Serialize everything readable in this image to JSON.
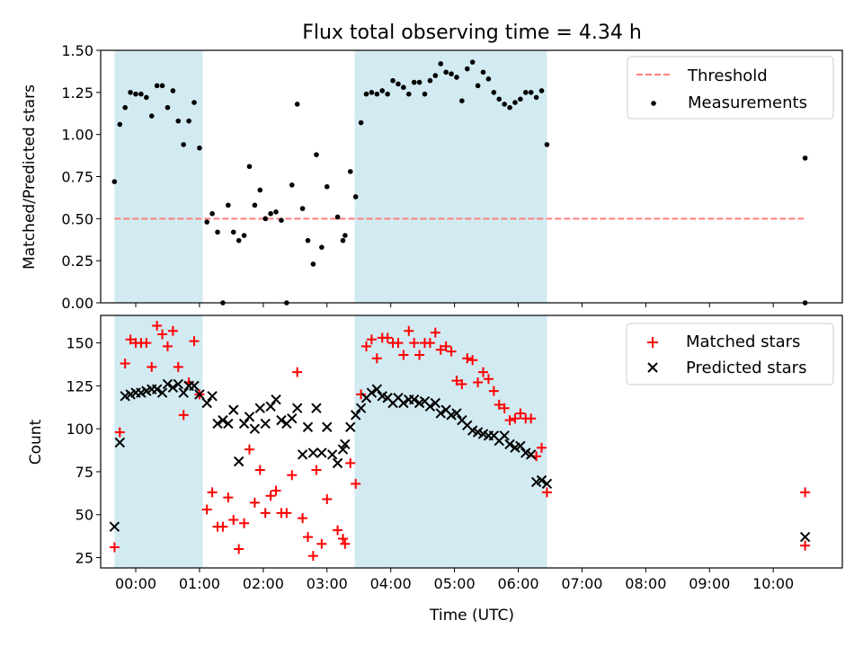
{
  "figure_title": "Flux total observing time = 4.34 h",
  "chart_data": [
    {
      "type": "scatter",
      "ylabel": "Matched/Predicted stars",
      "xlabel": "",
      "xlim": [
        "-00:33",
        "11:05"
      ],
      "ylim": [
        0,
        1.5
      ],
      "yticks": [
        "0.00",
        "0.25",
        "0.50",
        "0.75",
        "1.00",
        "1.25",
        "1.50"
      ],
      "legend": {
        "position": "top-right"
      },
      "shaded_intervals": [
        {
          "start": "-00:20",
          "end": "01:03",
          "color": "#add8e6"
        },
        {
          "start": "03:26",
          "end": "06:27",
          "color": "#add8e6"
        }
      ],
      "threshold": {
        "name": "Threshold",
        "value": 0.5,
        "x_start": "-00:20",
        "x_end": "10:30",
        "color": "#ff7f7f",
        "style": "dashed"
      },
      "series": [
        {
          "name": "Measurements",
          "color": "#000000",
          "marker": "dot",
          "points": [
            [
              "-00:20",
              0.72
            ],
            [
              "-00:15",
              1.06
            ],
            [
              "-00:10",
              1.16
            ],
            [
              "-00:05",
              1.25
            ],
            [
              "00:00",
              1.24
            ],
            [
              "00:05",
              1.24
            ],
            [
              "00:10",
              1.22
            ],
            [
              "00:15",
              1.11
            ],
            [
              "00:20",
              1.29
            ],
            [
              "00:25",
              1.29
            ],
            [
              "00:30",
              1.16
            ],
            [
              "00:35",
              1.26
            ],
            [
              "00:40",
              1.08
            ],
            [
              "00:45",
              0.94
            ],
            [
              "00:50",
              1.08
            ],
            [
              "00:55",
              1.19
            ],
            [
              "01:00",
              0.92
            ],
            [
              "01:07",
              0.48
            ],
            [
              "01:12",
              0.53
            ],
            [
              "01:17",
              0.42
            ],
            [
              "01:22",
              0.0
            ],
            [
              "01:27",
              0.58
            ],
            [
              "01:32",
              0.42
            ],
            [
              "01:37",
              0.37
            ],
            [
              "01:42",
              0.4
            ],
            [
              "01:47",
              0.81
            ],
            [
              "01:52",
              0.58
            ],
            [
              "01:57",
              0.67
            ],
            [
              "02:02",
              0.5
            ],
            [
              "02:07",
              0.53
            ],
            [
              "02:12",
              0.54
            ],
            [
              "02:17",
              0.49
            ],
            [
              "02:22",
              0.0
            ],
            [
              "02:27",
              0.7
            ],
            [
              "02:32",
              1.18
            ],
            [
              "02:37",
              0.56
            ],
            [
              "02:42",
              0.37
            ],
            [
              "02:47",
              0.23
            ],
            [
              "02:50",
              0.88
            ],
            [
              "02:55",
              0.33
            ],
            [
              "03:00",
              0.69
            ],
            [
              "03:10",
              0.51
            ],
            [
              "03:15",
              0.37
            ],
            [
              "03:17",
              0.4
            ],
            [
              "03:22",
              0.78
            ],
            [
              "03:27",
              0.63
            ],
            [
              "03:32",
              1.07
            ],
            [
              "03:37",
              1.24
            ],
            [
              "03:42",
              1.25
            ],
            [
              "03:47",
              1.24
            ],
            [
              "03:52",
              1.26
            ],
            [
              "03:57",
              1.24
            ],
            [
              "04:02",
              1.32
            ],
            [
              "04:07",
              1.3
            ],
            [
              "04:12",
              1.28
            ],
            [
              "04:17",
              1.24
            ],
            [
              "04:22",
              1.31
            ],
            [
              "04:27",
              1.31
            ],
            [
              "04:32",
              1.24
            ],
            [
              "04:37",
              1.32
            ],
            [
              "04:42",
              1.35
            ],
            [
              "04:47",
              1.42
            ],
            [
              "04:52",
              1.37
            ],
            [
              "04:57",
              1.36
            ],
            [
              "05:02",
              1.34
            ],
            [
              "05:07",
              1.2
            ],
            [
              "05:12",
              1.39
            ],
            [
              "05:17",
              1.43
            ],
            [
              "05:22",
              1.29
            ],
            [
              "05:27",
              1.37
            ],
            [
              "05:32",
              1.33
            ],
            [
              "05:37",
              1.25
            ],
            [
              "05:42",
              1.21
            ],
            [
              "05:47",
              1.18
            ],
            [
              "05:52",
              1.16
            ],
            [
              "05:57",
              1.19
            ],
            [
              "06:02",
              1.21
            ],
            [
              "06:07",
              1.25
            ],
            [
              "06:12",
              1.25
            ],
            [
              "06:17",
              1.22
            ],
            [
              "06:22",
              1.26
            ],
            [
              "06:27",
              0.94
            ],
            [
              "10:30",
              0.86
            ],
            [
              "10:30",
              0.0
            ]
          ]
        }
      ]
    },
    {
      "type": "scatter",
      "ylabel": "Count",
      "xlabel": "Time (UTC)",
      "xlim": [
        "-00:33",
        "11:05"
      ],
      "ylim": [
        19,
        166
      ],
      "yticks": [
        "25",
        "50",
        "75",
        "100",
        "125",
        "150"
      ],
      "xticks": [
        "00:00",
        "01:00",
        "02:00",
        "03:00",
        "04:00",
        "05:00",
        "06:00",
        "07:00",
        "08:00",
        "09:00",
        "10:00"
      ],
      "legend": {
        "position": "top-right"
      },
      "shaded_intervals": [
        {
          "start": "-00:20",
          "end": "01:03",
          "color": "#add8e6"
        },
        {
          "start": "03:26",
          "end": "06:27",
          "color": "#add8e6"
        }
      ],
      "series": [
        {
          "name": "Matched stars",
          "color": "#ff0000",
          "marker": "plus",
          "points": [
            [
              "-00:20",
              31
            ],
            [
              "-00:15",
              98
            ],
            [
              "-00:10",
              138
            ],
            [
              "-00:05",
              152
            ],
            [
              "00:00",
              150
            ],
            [
              "00:05",
              150
            ],
            [
              "00:10",
              150
            ],
            [
              "00:15",
              136
            ],
            [
              "00:20",
              160
            ],
            [
              "00:25",
              155
            ],
            [
              "00:30",
              148
            ],
            [
              "00:35",
              157
            ],
            [
              "00:40",
              136
            ],
            [
              "00:45",
              108
            ],
            [
              "00:50",
              127
            ],
            [
              "00:55",
              151
            ],
            [
              "01:00",
              120
            ],
            [
              "01:07",
              53
            ],
            [
              "01:12",
              63
            ],
            [
              "01:17",
              43
            ],
            [
              "01:22",
              43
            ],
            [
              "01:27",
              60
            ],
            [
              "01:32",
              47
            ],
            [
              "01:37",
              30
            ],
            [
              "01:42",
              45
            ],
            [
              "01:47",
              88
            ],
            [
              "01:52",
              57
            ],
            [
              "01:57",
              76
            ],
            [
              "02:02",
              51
            ],
            [
              "02:07",
              61
            ],
            [
              "02:12",
              64
            ],
            [
              "02:17",
              51
            ],
            [
              "02:22",
              51
            ],
            [
              "02:27",
              73
            ],
            [
              "02:32",
              133
            ],
            [
              "02:37",
              48
            ],
            [
              "02:42",
              37
            ],
            [
              "02:47",
              26
            ],
            [
              "02:50",
              76
            ],
            [
              "02:55",
              33
            ],
            [
              "03:00",
              59
            ],
            [
              "03:10",
              41
            ],
            [
              "03:15",
              36
            ],
            [
              "03:17",
              33
            ],
            [
              "03:22",
              80
            ],
            [
              "03:27",
              68
            ],
            [
              "03:32",
              120
            ],
            [
              "03:37",
              148
            ],
            [
              "03:42",
              152
            ],
            [
              "03:47",
              141
            ],
            [
              "03:52",
              153
            ],
            [
              "03:57",
              153
            ],
            [
              "04:02",
              150
            ],
            [
              "04:07",
              150
            ],
            [
              "04:12",
              143
            ],
            [
              "04:17",
              157
            ],
            [
              "04:22",
              150
            ],
            [
              "04:27",
              143
            ],
            [
              "04:32",
              150
            ],
            [
              "04:37",
              150
            ],
            [
              "04:42",
              156
            ],
            [
              "04:47",
              146
            ],
            [
              "04:52",
              148
            ],
            [
              "04:57",
              145
            ],
            [
              "05:02",
              128
            ],
            [
              "05:07",
              126
            ],
            [
              "05:12",
              141
            ],
            [
              "05:17",
              140
            ],
            [
              "05:22",
              127
            ],
            [
              "05:27",
              133
            ],
            [
              "05:32",
              129
            ],
            [
              "05:37",
              122
            ],
            [
              "05:42",
              114
            ],
            [
              "05:47",
              112
            ],
            [
              "05:52",
              105
            ],
            [
              "05:57",
              106
            ],
            [
              "06:02",
              109
            ],
            [
              "06:07",
              106
            ],
            [
              "06:12",
              106
            ],
            [
              "06:17",
              84
            ],
            [
              "06:22",
              89
            ],
            [
              "06:27",
              63
            ],
            [
              "10:30",
              63
            ],
            [
              "10:30",
              32
            ]
          ]
        },
        {
          "name": "Predicted stars",
          "color": "#000000",
          "marker": "x",
          "points": [
            [
              "-00:20",
              43
            ],
            [
              "-00:15",
              92
            ],
            [
              "-00:10",
              119
            ],
            [
              "-00:05",
              120
            ],
            [
              "00:00",
              121
            ],
            [
              "00:05",
              121
            ],
            [
              "00:10",
              122
            ],
            [
              "00:15",
              123
            ],
            [
              "00:20",
              123
            ],
            [
              "00:25",
              121
            ],
            [
              "00:30",
              126
            ],
            [
              "00:35",
              124
            ],
            [
              "00:40",
              126
            ],
            [
              "00:45",
              121
            ],
            [
              "00:50",
              125
            ],
            [
              "00:55",
              125
            ],
            [
              "01:00",
              120
            ],
            [
              "01:07",
              115
            ],
            [
              "01:12",
              119
            ],
            [
              "01:17",
              103
            ],
            [
              "01:22",
              105
            ],
            [
              "01:27",
              103
            ],
            [
              "01:32",
              111
            ],
            [
              "01:37",
              81
            ],
            [
              "01:42",
              103
            ],
            [
              "01:47",
              107
            ],
            [
              "01:52",
              100
            ],
            [
              "01:57",
              112
            ],
            [
              "02:02",
              103
            ],
            [
              "02:07",
              113
            ],
            [
              "02:12",
              117
            ],
            [
              "02:17",
              105
            ],
            [
              "02:22",
              103
            ],
            [
              "02:27",
              106
            ],
            [
              "02:32",
              112
            ],
            [
              "02:37",
              85
            ],
            [
              "02:42",
              101
            ],
            [
              "02:47",
              86
            ],
            [
              "02:50",
              112
            ],
            [
              "02:55",
              86
            ],
            [
              "03:00",
              101
            ],
            [
              "03:05",
              85
            ],
            [
              "03:10",
              80
            ],
            [
              "03:15",
              88
            ],
            [
              "03:17",
              91
            ],
            [
              "03:22",
              101
            ],
            [
              "03:27",
              108
            ],
            [
              "03:32",
              112
            ],
            [
              "03:37",
              118
            ],
            [
              "03:42",
              121
            ],
            [
              "03:47",
              123
            ],
            [
              "03:52",
              119
            ],
            [
              "03:57",
              118
            ],
            [
              "04:02",
              115
            ],
            [
              "04:07",
              118
            ],
            [
              "04:12",
              115
            ],
            [
              "04:17",
              117
            ],
            [
              "04:22",
              117
            ],
            [
              "04:27",
              115
            ],
            [
              "04:32",
              116
            ],
            [
              "04:37",
              113
            ],
            [
              "04:42",
              115
            ],
            [
              "04:47",
              109
            ],
            [
              "04:52",
              111
            ],
            [
              "04:57",
              108
            ],
            [
              "05:02",
              109
            ],
            [
              "05:07",
              105
            ],
            [
              "05:12",
              102
            ],
            [
              "05:17",
              99
            ],
            [
              "05:22",
              98
            ],
            [
              "05:27",
              97
            ],
            [
              "05:32",
              96
            ],
            [
              "05:37",
              96
            ],
            [
              "05:42",
              93
            ],
            [
              "05:47",
              96
            ],
            [
              "05:52",
              91
            ],
            [
              "05:57",
              89
            ],
            [
              "06:02",
              90
            ],
            [
              "06:07",
              86
            ],
            [
              "06:12",
              85
            ],
            [
              "06:17",
              69
            ],
            [
              "06:22",
              70
            ],
            [
              "06:27",
              68
            ],
            [
              "10:30",
              37
            ]
          ]
        }
      ]
    }
  ]
}
